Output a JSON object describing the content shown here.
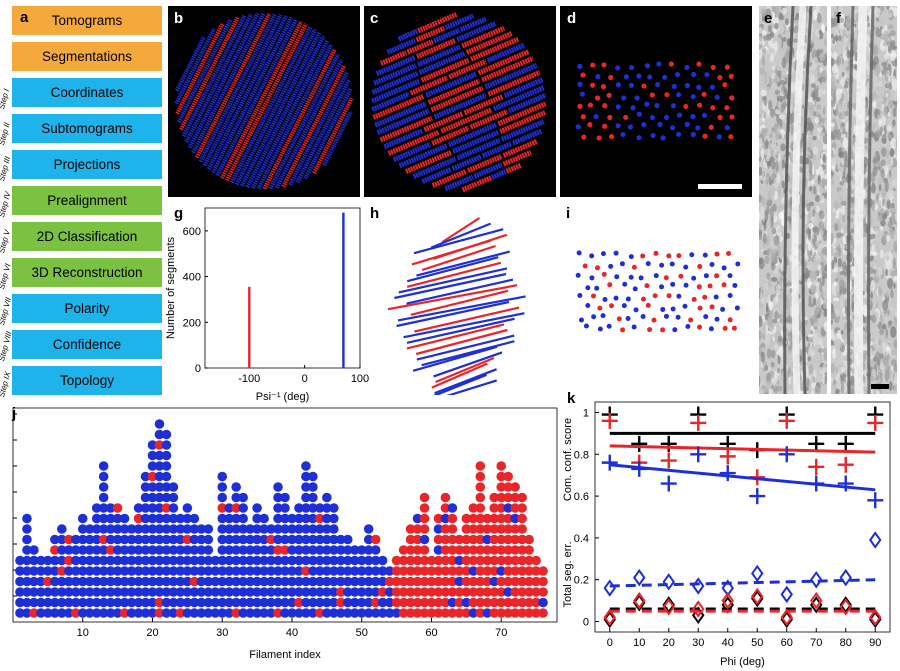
{
  "panel_labels": {
    "a": "a",
    "b": "b",
    "c": "c",
    "d": "d",
    "e": "e",
    "f": "f",
    "g": "g",
    "h": "h",
    "i": "i",
    "j": "j",
    "k": "k"
  },
  "workflow": [
    {
      "label": "Tomograms",
      "step": "",
      "color": "#f5a93d"
    },
    {
      "label": "Segmentations",
      "step": "",
      "color": "#f5a93d"
    },
    {
      "label": "Coordinates",
      "step": "Step I",
      "color": "#1fb3ec"
    },
    {
      "label": "Subtomograms",
      "step": "Step II",
      "color": "#1fb3ec"
    },
    {
      "label": "Projections",
      "step": "Step III",
      "color": "#1fb3ec"
    },
    {
      "label": "Prealignment",
      "step": "Step IV",
      "color": "#7cc242"
    },
    {
      "label": "2D Classification",
      "step": "Step V",
      "color": "#7cc242"
    },
    {
      "label": "3D Reconstruction",
      "step": "Step VI",
      "color": "#7cc242"
    },
    {
      "label": "Polarity",
      "step": "Step VII",
      "color": "#1fb3ec"
    },
    {
      "label": "Confidence",
      "step": "Step VIII",
      "color": "#1fb3ec"
    },
    {
      "label": "Topology",
      "step": "Step IX",
      "color": "#1fb3ec"
    }
  ],
  "colors": {
    "red": "#e8262a",
    "blue": "#1e2fd6",
    "black": "#000000"
  },
  "chart_data": [
    {
      "id": "g",
      "type": "bar",
      "title": "",
      "xlabel": "Psi⁻¹ (deg)",
      "ylabel": "Number of segments",
      "xlim": [
        -180,
        100
      ],
      "ylim": [
        0,
        700
      ],
      "xticks": [
        -100,
        0,
        100
      ],
      "xtick_labels": [
        "-100",
        "0",
        "100"
      ],
      "yticks": [
        0,
        200,
        400,
        600
      ],
      "ytick_labels": [
        "0",
        "200",
        "400",
        "600"
      ],
      "series": [
        {
          "name": "red",
          "x": -100,
          "value": 355,
          "color": "#e8262a"
        },
        {
          "name": "blue",
          "x": 70,
          "value": 680,
          "color": "#1e2fd6"
        }
      ]
    },
    {
      "id": "j",
      "type": "scatter",
      "xlabel": "Filament index",
      "ylabel": "",
      "xlim": [
        0,
        78
      ],
      "xticks": [
        10,
        20,
        30,
        40,
        50,
        60,
        70
      ],
      "xtick_labels": [
        "10",
        "20",
        "30",
        "40",
        "50",
        "60",
        "70"
      ],
      "column_heights": [
        6,
        10,
        7,
        6,
        6,
        8,
        9,
        8,
        8,
        10,
        9,
        11,
        15,
        11,
        11,
        10,
        9,
        11,
        14,
        17,
        19,
        18,
        13,
        10,
        11,
        10,
        9,
        9,
        6,
        14,
        11,
        13,
        12,
        9,
        11,
        10,
        9,
        13,
        12,
        10,
        11,
        15,
        14,
        11,
        12,
        11,
        8,
        8,
        7,
        7,
        9,
        8,
        6,
        5,
        6,
        7,
        9,
        10,
        12,
        6,
        10,
        12,
        11,
        8,
        10,
        11,
        15,
        10,
        12,
        15,
        14,
        13,
        12,
        8,
        6,
        5
      ],
      "blue_until": 54,
      "note": "blue dots dominate filaments 1-54, red dots dominate filaments 55-76"
    },
    {
      "id": "k",
      "type": "scatter",
      "xlabel": "Phi (deg)",
      "ylabel_top": "Com. conf. score",
      "ylabel_bottom": "Total seg. err.",
      "xlim": [
        -5,
        95
      ],
      "ylim": [
        -0.05,
        1.05
      ],
      "xticks": [
        0,
        10,
        20,
        30,
        40,
        50,
        60,
        70,
        80,
        90
      ],
      "xtick_labels": [
        "0",
        "10",
        "20",
        "30",
        "40",
        "50",
        "60",
        "70",
        "80",
        "90"
      ],
      "yticks": [
        0,
        0.2,
        0.4,
        0.6,
        0.8,
        1
      ],
      "ytick_labels": [
        "0",
        "0.2",
        "0.4",
        "0.6",
        "0.8",
        "1"
      ],
      "x": [
        0,
        10,
        20,
        30,
        40,
        50,
        60,
        70,
        80,
        90
      ],
      "series": [
        {
          "name": "score-black",
          "marker": "plus",
          "color": "#000000",
          "values": [
            0.99,
            0.85,
            0.85,
            0.99,
            0.85,
            0.82,
            0.99,
            0.85,
            0.85,
            0.99
          ],
          "fit": [
            0.9,
            0.9
          ]
        },
        {
          "name": "score-red",
          "marker": "plus",
          "color": "#e8262a",
          "values": [
            0.96,
            0.76,
            0.77,
            0.95,
            0.79,
            0.69,
            0.96,
            0.74,
            0.75,
            0.95
          ],
          "fit": [
            0.84,
            0.81
          ]
        },
        {
          "name": "score-blue",
          "marker": "plus",
          "color": "#1e2fd6",
          "values": [
            0.76,
            0.73,
            0.66,
            0.8,
            0.71,
            0.6,
            0.8,
            0.66,
            0.66,
            0.58
          ],
          "fit": [
            0.75,
            0.63
          ]
        },
        {
          "name": "err-blue",
          "marker": "diamond",
          "color": "#1e2fd6",
          "values": [
            0.16,
            0.21,
            0.19,
            0.17,
            0.16,
            0.23,
            0.13,
            0.2,
            0.21,
            0.39
          ],
          "fit": [
            0.17,
            0.2
          ]
        },
        {
          "name": "err-black",
          "marker": "diamond",
          "color": "#000000",
          "values": [
            0.01,
            0.09,
            0.08,
            0.03,
            0.08,
            0.11,
            0.01,
            0.08,
            0.08,
            0.01
          ],
          "fit": [
            0.06,
            0.06
          ]
        },
        {
          "name": "err-red",
          "marker": "diamond",
          "color": "#e8262a",
          "values": [
            0.02,
            0.1,
            0.07,
            0.06,
            0.1,
            0.12,
            0.02,
            0.1,
            0.07,
            0.02
          ],
          "fit": [
            0.05,
            0.05
          ]
        }
      ]
    }
  ]
}
